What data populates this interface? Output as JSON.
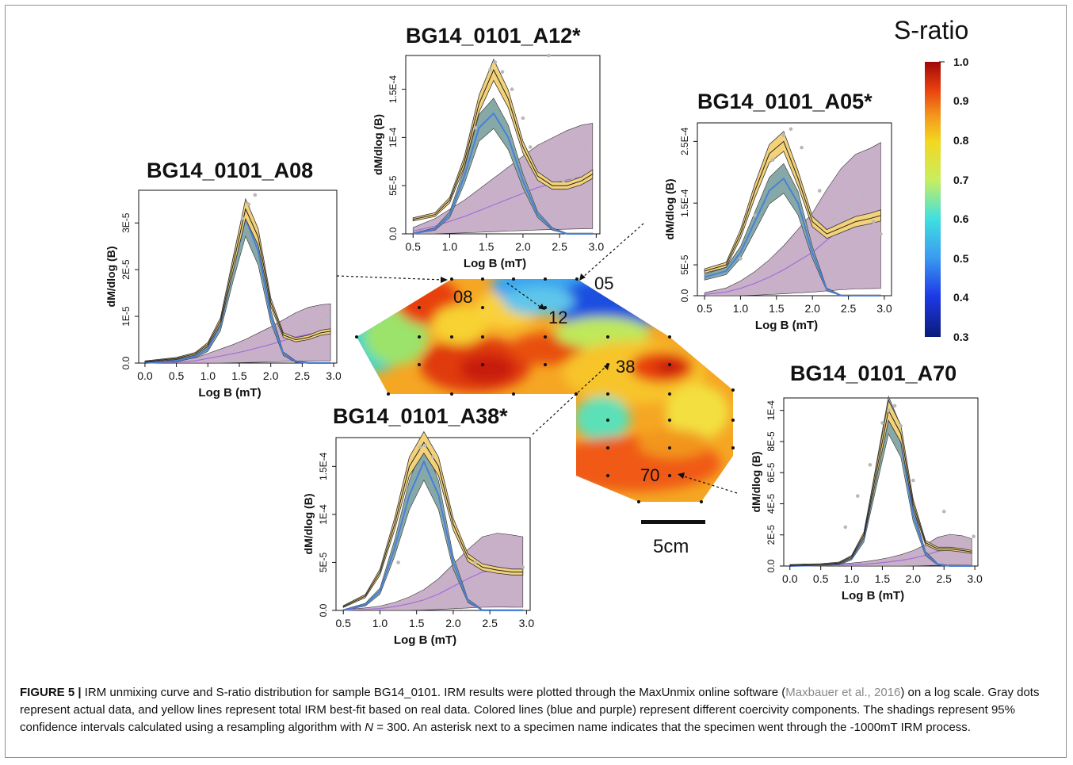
{
  "figure": {
    "caption_label": "FIGURE 5 |",
    "caption_part1": "IRM unmixing curve and S-ratio distribution for sample BG14_0101. IRM results were plotted through the MaxUnmix online software (",
    "caption_citation": "Maxbauer et al., 2016",
    "caption_part2": ") on a log scale. Gray dots represent actual data, and yellow lines represent total IRM best-fit based on real data. Colored lines (blue and purple) represent different coercivity components. The shadings represent 95% confidence intervals calculated using a resampling algorithm with ",
    "caption_n": "N",
    "caption_part3": " = 300. An asterisk next to a specimen name indicates that the specimen went through the -1000mT IRM process."
  },
  "colors": {
    "fit_yellow": "#f3d27a",
    "component_blue": "#4a7fd8",
    "component_blue_fill": "#86a9a8",
    "component_purple": "#a16fd8",
    "component_purple_fill": "#c9b0c9",
    "data_gray": "#b8b8b8"
  },
  "map": {
    "sratio_title": "S-ratio",
    "colorbar_ticks": [
      "1.0",
      "0.9",
      "0.8",
      "0.7",
      "0.6",
      "0.5",
      "0.4",
      "0.3"
    ],
    "specimen_labels": [
      "08",
      "12",
      "05",
      "38",
      "70"
    ],
    "scale_label": "5cm"
  },
  "chart_data": [
    {
      "type": "line",
      "title": "BG14_0101_A12*",
      "xlabel": "Log B (mT)",
      "ylabel": "dM/dlog (B)",
      "x_ticks": [
        "0.5",
        "1.0",
        "1.5",
        "2.0",
        "2.5",
        "3.0"
      ],
      "y_ticks": [
        "0.0",
        "5E-5",
        "1E-4",
        "1.5E-4"
      ],
      "xlim": [
        0.4,
        3.05
      ],
      "ylim": [
        0,
        0.000185
      ],
      "series": [
        {
          "role": "total",
          "x": [
            0.5,
            0.8,
            1.0,
            1.2,
            1.4,
            1.6,
            1.8,
            2.0,
            2.2,
            2.4,
            2.6,
            2.8,
            2.95
          ],
          "y": [
            1.5e-05,
            2e-05,
            3.5e-05,
            7.5e-05,
            0.000135,
            0.00017,
            0.00014,
            9e-05,
            6e-05,
            5e-05,
            5e-05,
            5.5e-05,
            6.2e-05
          ]
        },
        {
          "role": "component-1",
          "x": [
            0.5,
            0.8,
            1.0,
            1.2,
            1.4,
            1.6,
            1.8,
            2.0,
            2.2,
            2.4,
            2.6,
            2.8,
            2.95
          ],
          "y": [
            0,
            5e-06,
            2e-05,
            6e-05,
            0.00011,
            0.000125,
            0.0001,
            5.5e-05,
            2e-05,
            5e-06,
            0,
            0,
            0
          ]
        },
        {
          "role": "component-2",
          "x": [
            0.5,
            0.8,
            1.0,
            1.2,
            1.4,
            1.6,
            1.8,
            2.0,
            2.2,
            2.4,
            2.6,
            2.8,
            2.95
          ],
          "y": [
            3e-06,
            8e-06,
            1.3e-05,
            1.8e-05,
            2.4e-05,
            3e-05,
            3.6e-05,
            4.2e-05,
            4.8e-05,
            5.2e-05,
            5.6e-05,
            5.9e-05,
            6e-05
          ]
        }
      ],
      "points": {
        "x": [
          1.35,
          1.55,
          1.62,
          1.72,
          1.85,
          2.0,
          2.1,
          2.35,
          2.55,
          2.68,
          2.85
        ],
        "y": [
          0.00011,
          0.00017,
          0.000178,
          0.000168,
          0.00015,
          0.00012,
          9e-05,
          0.000185,
          5.5e-05,
          5.8e-05,
          9e-05
        ]
      }
    },
    {
      "type": "line",
      "title": "BG14_0101_A05*",
      "xlabel": "Log B (mT)",
      "ylabel": "dM/dlog (B)",
      "x_ticks": [
        "0.5",
        "1.0",
        "1.5",
        "2.0",
        "2.5",
        "3.0"
      ],
      "y_ticks": [
        "0.0",
        "5E-5",
        "1.5E-4",
        "2.5E-4"
      ],
      "xlim": [
        0.4,
        3.1
      ],
      "ylim": [
        0,
        0.00028
      ],
      "series": [
        {
          "role": "total",
          "x": [
            0.5,
            0.8,
            1.0,
            1.2,
            1.4,
            1.6,
            1.8,
            2.0,
            2.2,
            2.4,
            2.6,
            2.8,
            2.95
          ],
          "y": [
            4e-05,
            5e-05,
            0.0001,
            0.00017,
            0.00023,
            0.00025,
            0.00019,
            0.00012,
            0.0001,
            0.00011,
            0.00012,
            0.000125,
            0.00013
          ]
        },
        {
          "role": "component-1",
          "x": [
            0.5,
            0.8,
            1.0,
            1.2,
            1.4,
            1.6,
            1.8,
            2.0,
            2.2,
            2.4,
            2.6,
            2.8,
            2.95
          ],
          "y": [
            3e-05,
            4e-05,
            7e-05,
            0.00012,
            0.00017,
            0.00019,
            0.00015,
            7e-05,
            1e-05,
            0,
            0,
            0,
            0
          ]
        },
        {
          "role": "component-2",
          "x": [
            0.5,
            0.8,
            1.0,
            1.2,
            1.4,
            1.6,
            1.8,
            2.0,
            2.2,
            2.4,
            2.6,
            2.8,
            2.95
          ],
          "y": [
            2e-06,
            6e-06,
            1.2e-05,
            2e-05,
            3e-05,
            4.2e-05,
            5.6e-05,
            7e-05,
            9e-05,
            0.000108,
            0.00012,
            0.000125,
            0.00013
          ]
        }
      ],
      "points": {
        "x": [
          1.0,
          1.2,
          1.45,
          1.6,
          1.7,
          1.85,
          2.1,
          2.3,
          2.5,
          2.7,
          2.85,
          2.95
        ],
        "y": [
          6e-05,
          0.00013,
          0.00022,
          0.00026,
          0.00027,
          0.00024,
          0.00017,
          0.000125,
          0.00014,
          0.000165,
          0.00012,
          0.0001
        ]
      }
    },
    {
      "type": "line",
      "title": "BG14_0101_A08",
      "xlabel": "Log B (mT)",
      "ylabel": "dM/dlog (B)",
      "x_ticks": [
        "0.0",
        "0.5",
        "1.0",
        "1.5",
        "2.0",
        "2.5",
        "3.0"
      ],
      "y_ticks": [
        "0.0",
        "1E-5",
        "2E-5",
        "3E-5"
      ],
      "xlim": [
        -0.1,
        3.05
      ],
      "ylim": [
        0,
        3.7e-05
      ],
      "series": [
        {
          "role": "total",
          "x": [
            0,
            0.5,
            0.8,
            1.0,
            1.2,
            1.4,
            1.6,
            1.8,
            2.0,
            2.2,
            2.4,
            2.6,
            2.8,
            2.95
          ],
          "y": [
            3e-07,
            1e-06,
            2e-06,
            4e-06,
            9e-06,
            2.1e-05,
            3.3e-05,
            2.7e-05,
            1.3e-05,
            6e-06,
            5e-06,
            5.5e-06,
            6.5e-06,
            6.8e-06
          ]
        },
        {
          "role": "component-1",
          "x": [
            0,
            0.5,
            0.8,
            1.0,
            1.2,
            1.4,
            1.6,
            1.8,
            2.0,
            2.2,
            2.4,
            2.6,
            2.8,
            2.95
          ],
          "y": [
            0,
            5e-07,
            1.5e-06,
            3e-06,
            8e-06,
            2e-05,
            3.1e-05,
            2.4e-05,
            1e-05,
            2e-06,
            3e-07,
            0,
            0,
            0
          ]
        },
        {
          "role": "component-2",
          "x": [
            0,
            0.5,
            0.8,
            1.0,
            1.2,
            1.4,
            1.6,
            1.8,
            2.0,
            2.2,
            2.4,
            2.6,
            2.8,
            2.95
          ],
          "y": [
            0,
            2e-07,
            5e-07,
            1e-06,
            1.5e-06,
            2e-06,
            2.6e-06,
            3.3e-06,
            4e-06,
            4.8e-06,
            5.6e-06,
            6.2e-06,
            6.5e-06,
            6.6e-06
          ]
        }
      ],
      "points": {
        "x": [
          1.55,
          1.65,
          1.75,
          2.55,
          2.8,
          2.9
        ],
        "y": [
          3.1e-05,
          3.4e-05,
          3.6e-05,
          8e-06,
          9e-06,
          1e-05
        ]
      }
    },
    {
      "type": "line",
      "title": "BG14_0101_A38*",
      "xlabel": "Log B (mT)",
      "ylabel": "dM/dlog (B)",
      "x_ticks": [
        "0.5",
        "1.0",
        "1.5",
        "2.0",
        "2.5",
        "3.0"
      ],
      "y_ticks": [
        "0.0",
        "5E-5",
        "1E-4",
        "1.5E-4"
      ],
      "xlim": [
        0.4,
        3.05
      ],
      "ylim": [
        0,
        0.00018
      ],
      "series": [
        {
          "role": "total",
          "x": [
            0.5,
            0.8,
            1.0,
            1.2,
            1.4,
            1.6,
            1.8,
            2.0,
            2.2,
            2.4,
            2.6,
            2.8,
            2.95
          ],
          "y": [
            4e-06,
            1.5e-05,
            4e-05,
            9e-05,
            0.00015,
            0.000175,
            0.00015,
            9e-05,
            5.5e-05,
            4.5e-05,
            4.2e-05,
            4e-05,
            4e-05
          ]
        },
        {
          "role": "component-1",
          "x": [
            0.5,
            0.8,
            1.0,
            1.2,
            1.4,
            1.6,
            1.8,
            2.0,
            2.2,
            2.4,
            2.6,
            2.8,
            2.95
          ],
          "y": [
            0,
            6e-06,
            2e-05,
            6.5e-05,
            0.00012,
            0.000155,
            0.00012,
            5e-05,
            1e-05,
            0,
            0,
            0,
            0
          ]
        },
        {
          "role": "component-2",
          "x": [
            0.5,
            0.8,
            1.0,
            1.2,
            1.4,
            1.6,
            1.8,
            2.0,
            2.2,
            2.4,
            2.6,
            2.8,
            2.95
          ],
          "y": [
            0,
            1e-06,
            2e-06,
            4e-06,
            7e-06,
            1.1e-05,
            1.7e-05,
            2.5e-05,
            3.3e-05,
            4e-05,
            4.2e-05,
            4.1e-05,
            4e-05
          ]
        }
      ],
      "points": {
        "x": [
          1.25,
          1.55,
          1.62,
          1.72,
          2.3,
          2.95
        ],
        "y": [
          5e-05,
          0.00017,
          0.000172,
          0.00016,
          5e-05,
          4.5e-05
        ]
      }
    },
    {
      "type": "line",
      "title": "BG14_0101_A70",
      "xlabel": "Log B (mT)",
      "ylabel": "dM/dlog (B)",
      "x_ticks": [
        "0.0",
        "0.5",
        "1.0",
        "1.5",
        "2.0",
        "2.5",
        "3.0"
      ],
      "y_ticks": [
        "0.0",
        "2E-5",
        "4E-5",
        "6E-5",
        "8E-5",
        "1E-4"
      ],
      "xlim": [
        -0.1,
        3.05
      ],
      "ylim": [
        0,
        0.000108
      ],
      "series": [
        {
          "role": "total",
          "x": [
            0,
            0.5,
            0.8,
            1.0,
            1.2,
            1.4,
            1.6,
            1.8,
            2.0,
            2.2,
            2.4,
            2.6,
            2.8,
            2.95
          ],
          "y": [
            5e-07,
            1e-06,
            2e-06,
            6e-06,
            2e-05,
            6e-05,
            0.0001,
            8.5e-05,
            4e-05,
            1.5e-05,
            1.1e-05,
            1.1e-05,
            1e-05,
            9e-06
          ]
        },
        {
          "role": "component-1",
          "x": [
            0,
            0.5,
            0.8,
            1.0,
            1.2,
            1.4,
            1.6,
            1.8,
            2.0,
            2.2,
            2.4,
            2.6,
            2.8,
            2.95
          ],
          "y": [
            0,
            5e-07,
            1.5e-06,
            5e-06,
            1.8e-05,
            5.8e-05,
            9.7e-05,
            8e-05,
            3.3e-05,
            8e-06,
            1e-06,
            0,
            0,
            0
          ]
        },
        {
          "role": "component-2",
          "x": [
            0,
            0.5,
            0.8,
            1.0,
            1.2,
            1.4,
            1.6,
            1.8,
            2.0,
            2.2,
            2.4,
            2.6,
            2.8,
            2.95
          ],
          "y": [
            0,
            2e-07,
            5e-07,
            8e-07,
            1.2e-06,
            1.8e-06,
            2.6e-06,
            3.6e-06,
            5e-06,
            7e-06,
            9.5e-06,
            1.05e-05,
            1e-05,
            9e-06
          ]
        }
      ],
      "points": {
        "x": [
          0.9,
          1.1,
          1.3,
          1.5,
          1.6,
          1.7,
          1.8,
          2.0,
          2.5,
          2.85,
          2.98
        ],
        "y": [
          2.5e-05,
          4.5e-05,
          6.5e-05,
          9.2e-05,
          0.0001,
          0.000103,
          9e-05,
          5.5e-05,
          3.5e-05,
          1.6e-05,
          1.9e-05
        ]
      }
    }
  ]
}
